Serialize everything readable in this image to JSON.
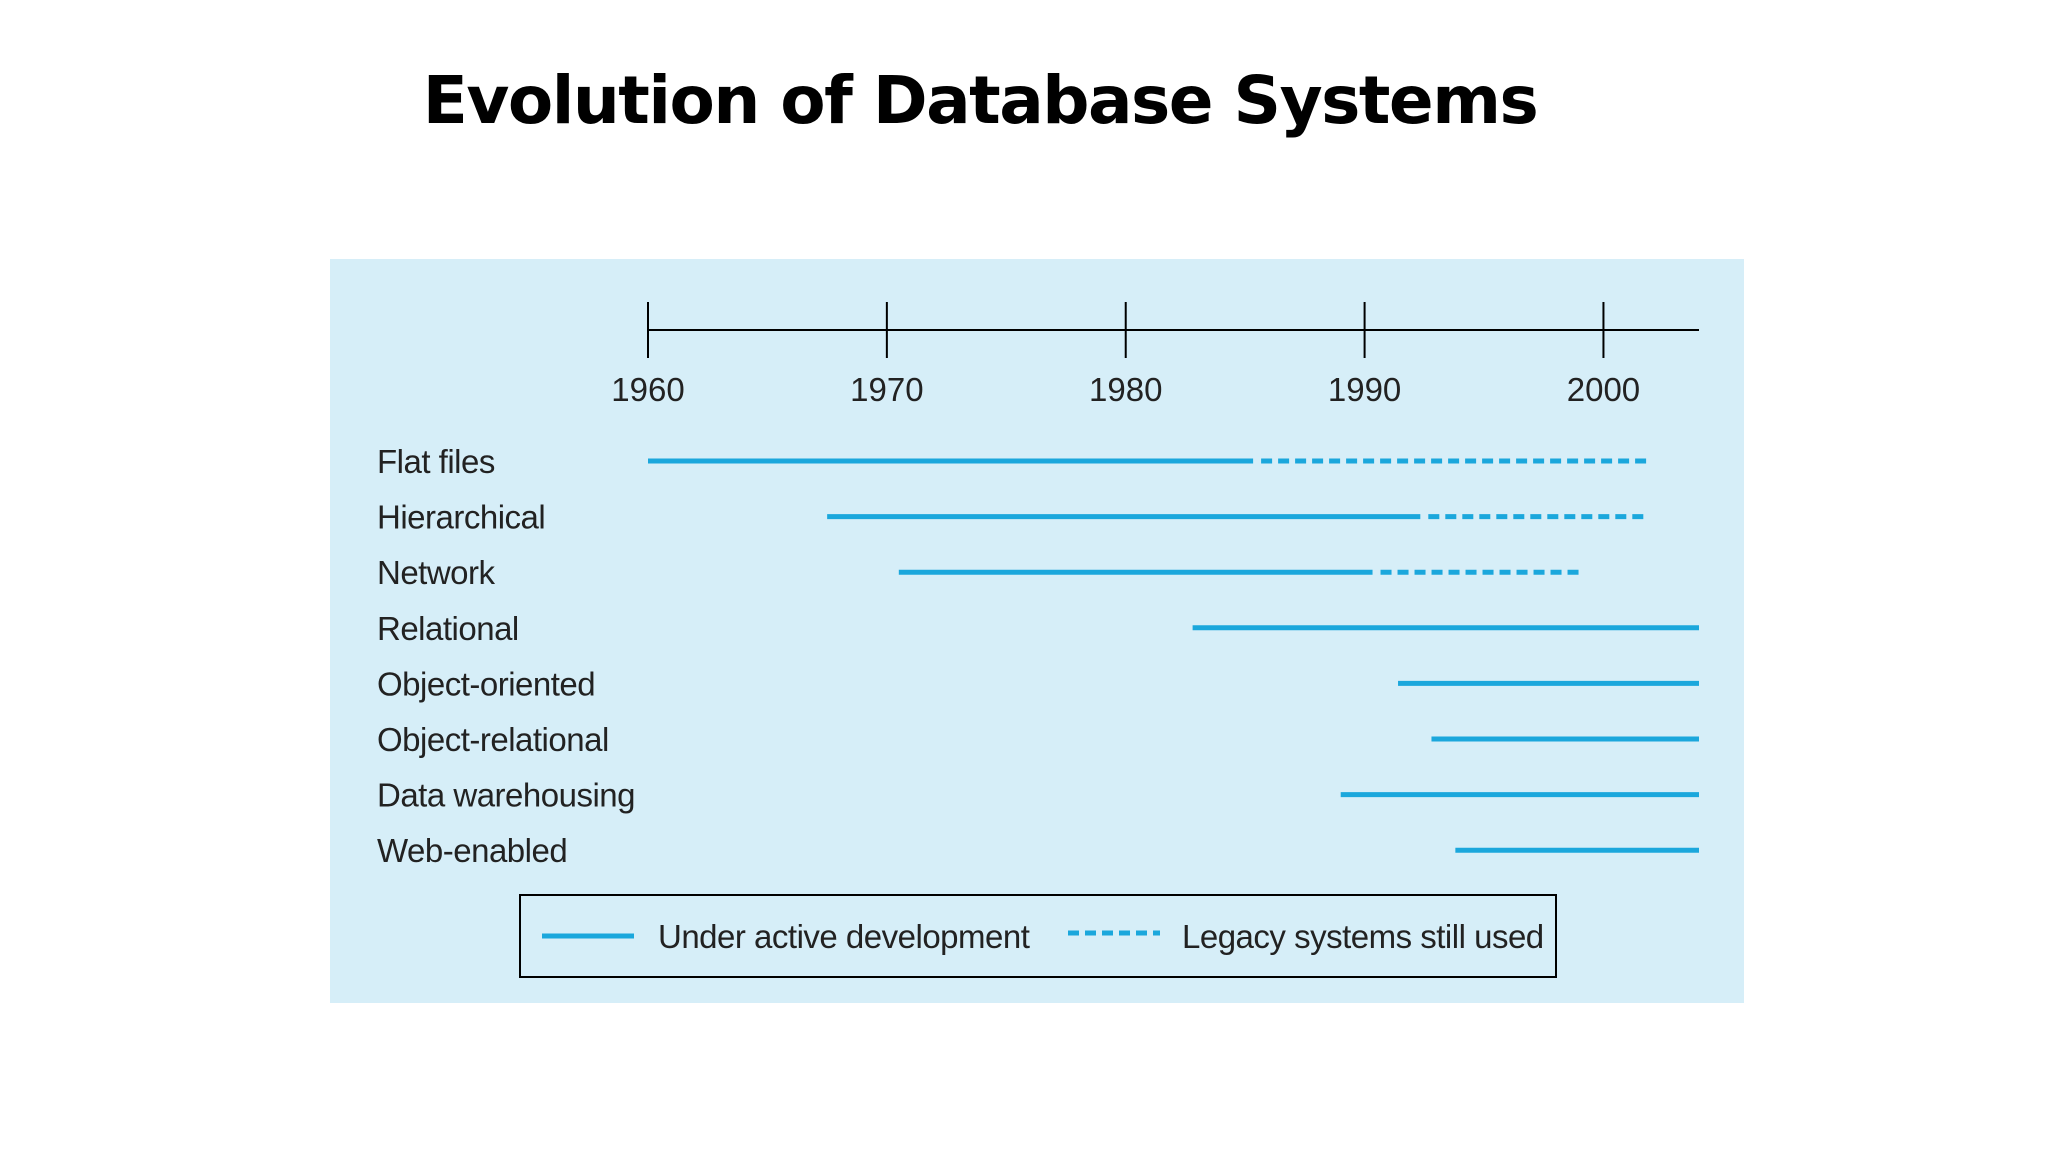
{
  "title": "Evolution of Database Systems",
  "colors": {
    "panel_background": "#d6eef8",
    "bar": "#1ba7dc",
    "axis": "#000000"
  },
  "chart_data": {
    "type": "timeline",
    "xlim": [
      1960,
      2004
    ],
    "x_ticks": [
      1960,
      1970,
      1980,
      1990,
      2000
    ],
    "grid": false,
    "legend_placement": "bottom-center",
    "series": [
      {
        "name": "Flat files",
        "active": [
          1960.0,
          1985.5
        ],
        "legacy": [
          1985.5,
          2001.8
        ]
      },
      {
        "name": "Hierarchical",
        "active": [
          1967.5,
          1992.5
        ],
        "legacy": [
          1992.5,
          2001.9
        ]
      },
      {
        "name": "Network",
        "active": [
          1970.5,
          1990.5
        ],
        "legacy": [
          1990.5,
          1999.0
        ]
      },
      {
        "name": "Relational",
        "active": [
          1982.8,
          2004.0
        ]
      },
      {
        "name": "Object-oriented",
        "active": [
          1991.4,
          2004.0
        ]
      },
      {
        "name": "Object-relational",
        "active": [
          1992.8,
          2004.0
        ]
      },
      {
        "name": "Data warehousing",
        "active": [
          1989.0,
          2004.0
        ]
      },
      {
        "name": "Web-enabled",
        "active": [
          1993.8,
          2004.0
        ]
      }
    ],
    "legend": {
      "active_label": "Under active development",
      "legacy_label": "Legacy systems still used"
    }
  }
}
